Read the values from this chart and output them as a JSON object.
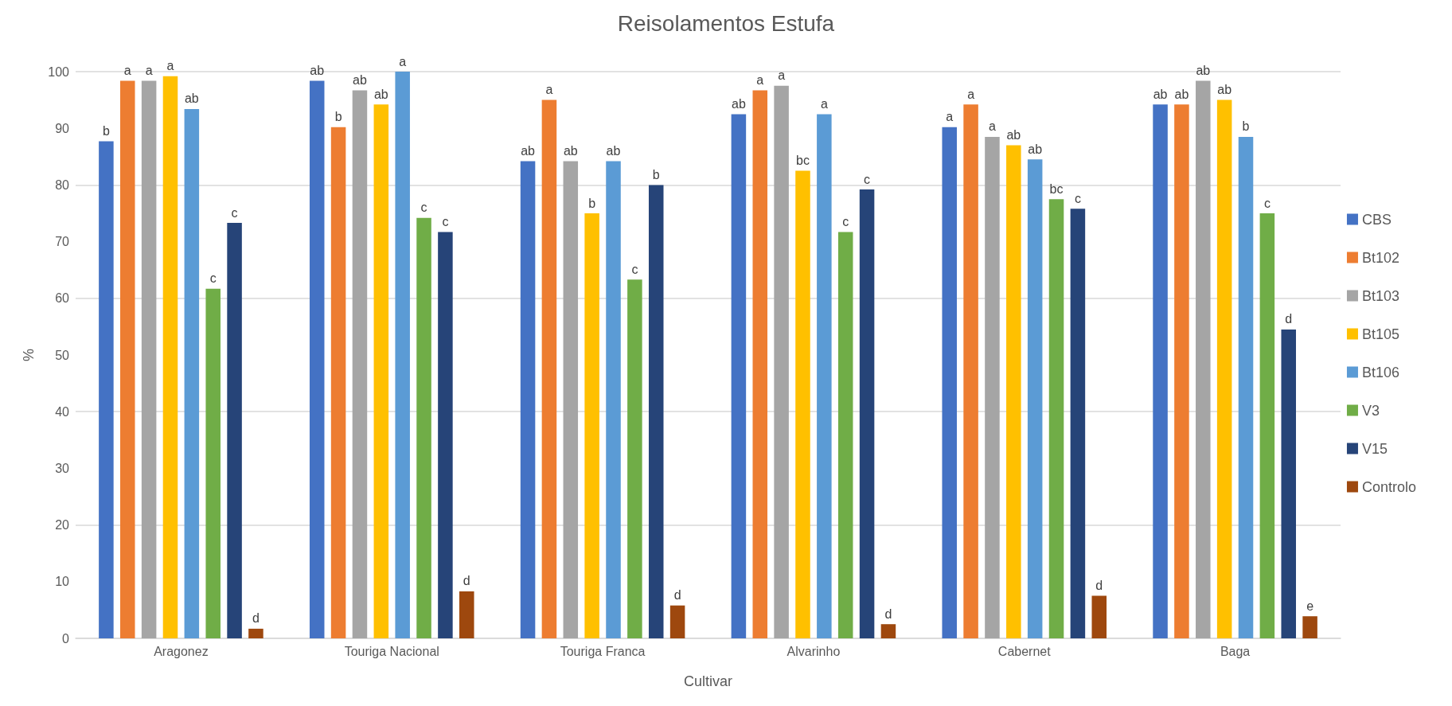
{
  "chart_data": {
    "type": "bar",
    "title": "Reisolamentos Estufa",
    "xlabel": "Cultivar",
    "ylabel": "%",
    "categories": [
      "Aragonez",
      "Touriga Nacional",
      "Touriga Franca",
      "Alvarinho",
      "Cabernet",
      "Baga"
    ],
    "series": [
      {
        "name": "CBS",
        "color": "#4472c4",
        "values": [
          87.7,
          98.4,
          84.2,
          92.5,
          90.2,
          94.2
        ],
        "value_labels": [
          "b",
          "ab",
          "ab",
          "ab",
          "a",
          "ab"
        ]
      },
      {
        "name": "Bt102",
        "color": "#ed7d31",
        "values": [
          98.4,
          90.2,
          95,
          96.7,
          94.2,
          94.2
        ],
        "value_labels": [
          "a",
          "b",
          "a",
          "a",
          "a",
          "ab"
        ]
      },
      {
        "name": "Bt103",
        "color": "#a5a5a5",
        "values": [
          98.4,
          96.7,
          84.2,
          97.5,
          88.5,
          98.4
        ],
        "value_labels": [
          "a",
          "ab",
          "ab",
          "a",
          "a",
          "ab"
        ]
      },
      {
        "name": "Bt105",
        "color": "#ffc000",
        "values": [
          99.2,
          94.2,
          75,
          82.5,
          87,
          95
        ],
        "value_labels": [
          "a",
          "ab",
          "b",
          "bc",
          "ab",
          "ab"
        ]
      },
      {
        "name": "Bt106",
        "color": "#5b9bd5",
        "values": [
          93.4,
          100,
          84.2,
          92.5,
          84.5,
          88.5
        ],
        "value_labels": [
          "ab",
          "a",
          "ab",
          "a",
          "ab",
          "b"
        ]
      },
      {
        "name": "V3",
        "color": "#70ad47",
        "values": [
          61.7,
          74.2,
          63.3,
          71.7,
          77.5,
          75
        ],
        "value_labels": [
          "c",
          "c",
          "c",
          "c",
          "bc",
          "c"
        ]
      },
      {
        "name": "V15",
        "color": "#264478",
        "values": [
          73.3,
          71.7,
          80,
          79.2,
          75.8,
          54.5
        ],
        "value_labels": [
          "c",
          "c",
          "b",
          "c",
          "c",
          "d"
        ]
      },
      {
        "name": "Controlo",
        "color": "#9e480e",
        "values": [
          1.7,
          8.3,
          5.8,
          2.5,
          7.5,
          3.9
        ],
        "value_labels": [
          "d",
          "d",
          "d",
          "d",
          "d",
          "e"
        ]
      }
    ],
    "ylim": [
      0,
      100
    ],
    "yticks": [
      0,
      10,
      20,
      30,
      40,
      50,
      60,
      70,
      80,
      90,
      100
    ],
    "grid": "y",
    "legend": "right"
  }
}
